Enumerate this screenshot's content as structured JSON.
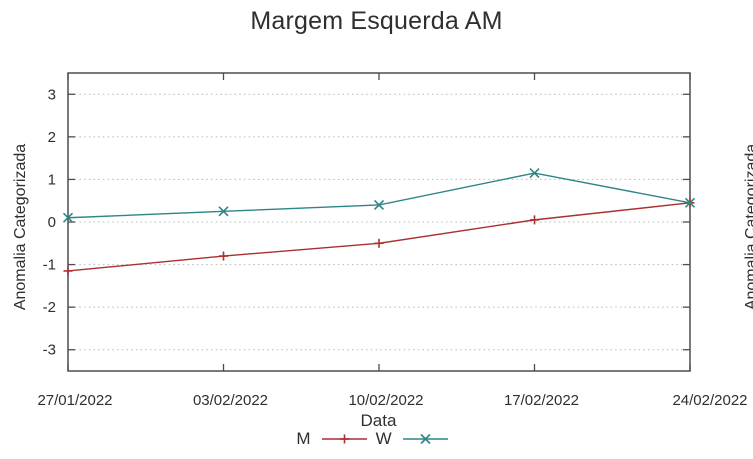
{
  "chart_data": {
    "type": "line",
    "title": "Margem Esquerda AM",
    "xlabel": "Data",
    "ylabel": "Anomalia Categorizada",
    "x": [
      "27/01/2022",
      "03/02/2022",
      "10/02/2022",
      "17/02/2022",
      "24/02/2022"
    ],
    "series": [
      {
        "name": "M",
        "marker": "plus",
        "color": "#ac2f2f",
        "values": [
          -1.15,
          -0.8,
          -0.5,
          0.05,
          0.45
        ]
      },
      {
        "name": "W",
        "marker": "cross",
        "color": "#2f8585",
        "values": [
          0.1,
          0.25,
          0.4,
          1.15,
          0.45
        ]
      }
    ],
    "yticks": [
      3,
      2,
      1,
      0,
      -1,
      -2,
      -3
    ],
    "ylim": [
      -3.5,
      3.5
    ],
    "grid": "dotted-horizontal",
    "legend_position": "bottom-center"
  },
  "adjacent_chart": {
    "ylabel": "Anomalia Categorizada"
  },
  "colors": {
    "m_series": "#ac2f2f",
    "w_series": "#2f8585",
    "grid": "#b8b8b8",
    "border": "#4d4d4d",
    "text": "#2f2f2f",
    "background": "#ffffff"
  }
}
